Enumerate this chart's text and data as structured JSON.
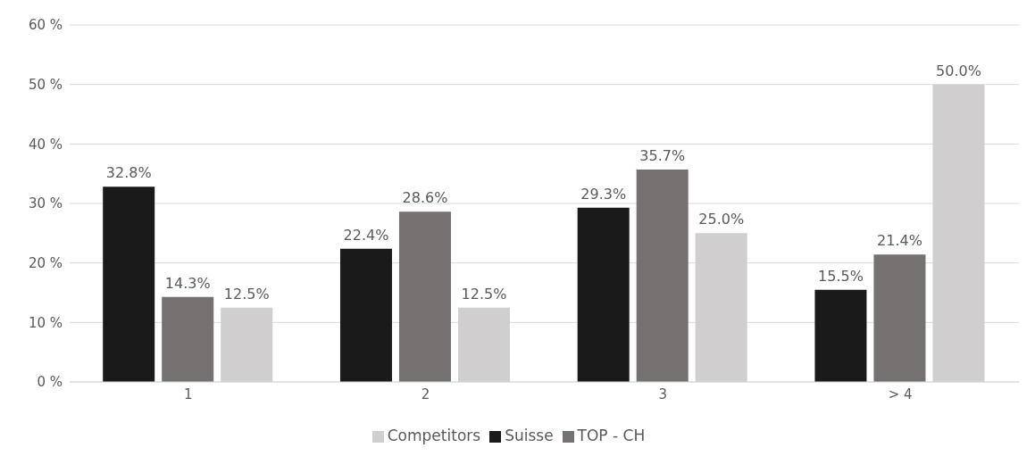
{
  "chart_data": {
    "type": "bar",
    "categories": [
      "1",
      "2",
      "3",
      "> 4"
    ],
    "series": [
      {
        "name": "Suisse",
        "color": "#1a1a1a",
        "values": [
          32.8,
          22.4,
          29.3,
          15.5
        ],
        "value_labels": [
          "32.8%",
          "22.4%",
          "29.3%",
          "15.5%"
        ]
      },
      {
        "name": "TOP - CH",
        "color": "#767171",
        "values": [
          14.3,
          28.6,
          35.7,
          21.4
        ],
        "value_labels": [
          "14.3%",
          "28.6%",
          "35.7%",
          "21.4%"
        ]
      },
      {
        "name": "Competitors",
        "color": "#d0cece",
        "values": [
          12.5,
          12.5,
          25.0,
          50.0
        ],
        "value_labels": [
          "12.5%",
          "12.5%",
          "25.0%",
          "50.0%"
        ]
      }
    ],
    "ylim": [
      0,
      60
    ],
    "yticks": [
      {
        "value": 0,
        "label": "0 %"
      },
      {
        "value": 10,
        "label": "10 %"
      },
      {
        "value": 20,
        "label": "20 %"
      },
      {
        "value": 30,
        "label": "30 %"
      },
      {
        "value": 40,
        "label": "40 %"
      },
      {
        "value": 50,
        "label": "50 %"
      },
      {
        "value": 60,
        "label": "60 %"
      }
    ],
    "grid": "y",
    "legend": "bottom"
  }
}
